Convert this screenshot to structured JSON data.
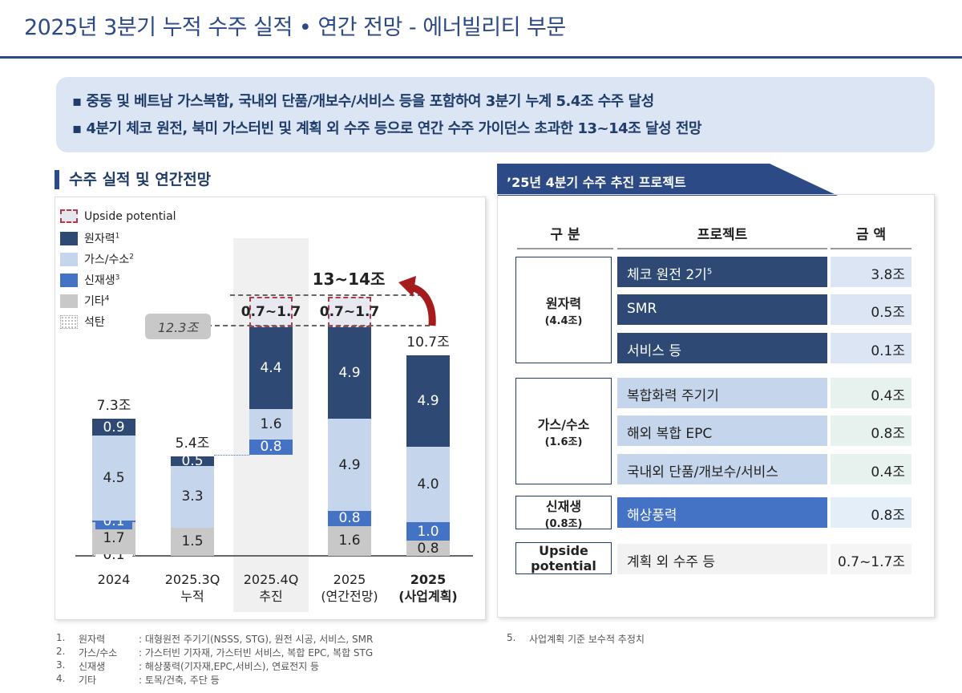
{
  "title": "2025년 3분기 누적 수주 실적 • 연간 전망 - 에너빌리티 부문",
  "summary": [
    "▪ 중동 및 베트남 가스복합, 국내외 단품/개보수/서비스 등을 포함하여 3분기 누계 5.4조 수주 달성",
    "▪ 4분기 체코 원전, 북미 가스터빈 및 계획 외 수주 등으로 연간 수주 가이던스 초과한 13~14조 달성 전망"
  ],
  "left_title": "수주 실적 및 연간전망",
  "chart_data": {
    "type": "bar",
    "stacked": true,
    "unit": "조",
    "legend": [
      {
        "name": "Upside potential",
        "color": "#e6e6ef"
      },
      {
        "name": "원자력",
        "sup": "1",
        "color": "#2e4a74"
      },
      {
        "name": "가스/수소",
        "sup": "2",
        "color": "#c5d5ec"
      },
      {
        "name": "신재생",
        "sup": "3",
        "color": "#4472c4"
      },
      {
        "name": "기타",
        "sup": "4",
        "color": "#c8c8c8"
      },
      {
        "name": "석탄",
        "color": "#ffffff"
      }
    ],
    "categories": [
      [
        "2024",
        ""
      ],
      [
        "2025.3Q",
        "누적"
      ],
      [
        "2025.4Q",
        "추진"
      ],
      [
        "2025",
        "(연간전망)"
      ],
      [
        "2025",
        "(사업계획)"
      ]
    ],
    "series": {
      "석탄": [
        0.1,
        0,
        0,
        0,
        0
      ],
      "기타": [
        1.7,
        1.5,
        0,
        1.6,
        0.8
      ],
      "신재생": [
        0.1,
        0,
        0.8,
        0.8,
        1.0
      ],
      "가스/수소": [
        4.5,
        3.3,
        1.6,
        4.9,
        4.0
      ],
      "원자력": [
        0.9,
        0.5,
        4.4,
        4.9,
        4.9
      ]
    },
    "bar_base": [
      0,
      0,
      5.4,
      0,
      0
    ],
    "totals": [
      "7.3조",
      "5.4조",
      "",
      "",
      "10.7조"
    ],
    "upside": [
      "",
      "",
      "0.7~1.7",
      "0.7~1.7",
      ""
    ],
    "annotations": {
      "target": "13~14조",
      "baseline_total": "12.3조"
    }
  },
  "right": {
    "tab": "’25년 4분기 수주 추진 프로젝트",
    "headers": [
      "구 분",
      "프로젝트",
      "금 액"
    ],
    "groups": [
      {
        "name": "원자력",
        "sub": "(4.4조)",
        "rows": [
          {
            "p": "체코 원전 2기",
            "sup": "5",
            "a": "3.8조"
          },
          {
            "p": "SMR",
            "a": "0.5조"
          },
          {
            "p": "서비스 등",
            "a": "0.1조"
          }
        ]
      },
      {
        "name": "가스/수소",
        "sub": "(1.6조)",
        "rows": [
          {
            "p": "복합화력 주기기",
            "a": "0.4조"
          },
          {
            "p": "해외 복합 EPC",
            "a": "0.8조"
          },
          {
            "p": "국내외 단품/개보수/서비스",
            "a": "0.4조"
          }
        ]
      },
      {
        "name": "신재생",
        "sub": "(0.8조)",
        "rows": [
          {
            "p": "해상풍력",
            "a": "0.8조"
          }
        ]
      },
      {
        "name": "Upside potential",
        "sub": "",
        "rows": [
          {
            "p": "계획 외 수주 등",
            "a": "0.7~1.7조"
          }
        ]
      }
    ]
  },
  "footnotes": [
    [
      "1.",
      "원자력",
      ": 대형원전 주기기(NSSS, STG), 원전 시공, 서비스, SMR"
    ],
    [
      "2.",
      "가스/수소",
      ": 가스터빈 기자재, 가스터빈 서비스, 복합 EPC, 복합 STG"
    ],
    [
      "3.",
      "신재생",
      ": 해상풍력(기자재,EPC,서비스), 연료전지 등"
    ],
    [
      "4.",
      "기타",
      ": 토목/건축, 주단 등"
    ],
    [
      "5.",
      "사업계획 기준 보수적 추정치",
      ""
    ]
  ]
}
